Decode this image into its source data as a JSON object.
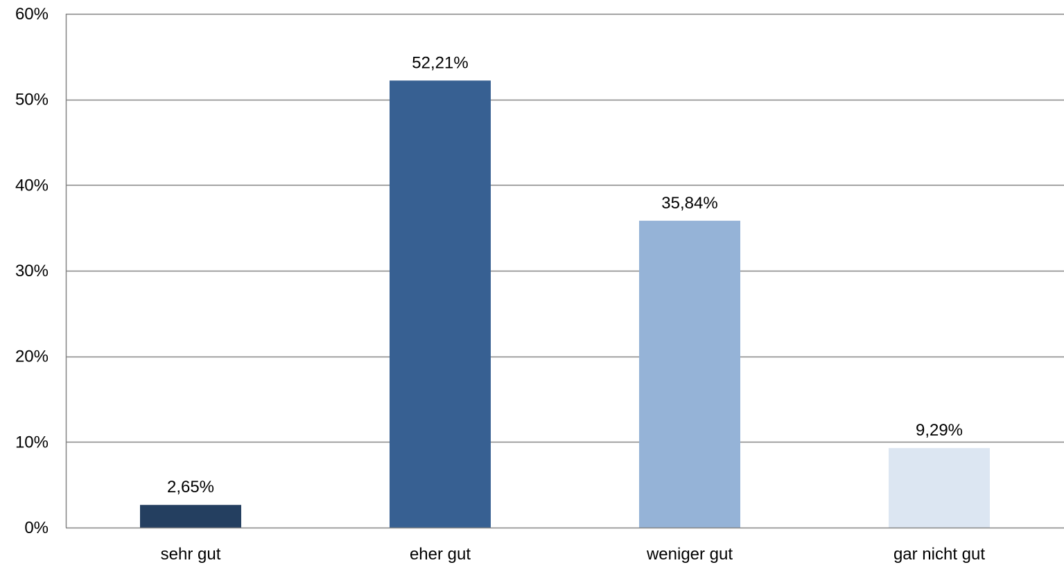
{
  "chart_data": {
    "type": "bar",
    "title": "",
    "xlabel": "",
    "ylabel": "",
    "categories": [
      "sehr gut",
      "eher gut",
      "weniger gut",
      "gar nicht gut"
    ],
    "values": [
      2.65,
      52.21,
      35.84,
      9.29
    ],
    "data_labels": [
      "2,65%",
      "52,21%",
      "35,84%",
      "9,29%"
    ],
    "bar_colors": [
      "#243F60",
      "#376092",
      "#95B3D7",
      "#DCE6F2"
    ],
    "ylim": [
      0,
      60
    ],
    "yticks": [
      0,
      10,
      20,
      30,
      40,
      50,
      60
    ],
    "ytick_labels": [
      "0%",
      "10%",
      "20%",
      "30%",
      "40%",
      "50%",
      "60%"
    ],
    "grid": true,
    "gridline_color": "#868686",
    "legend": "none"
  }
}
